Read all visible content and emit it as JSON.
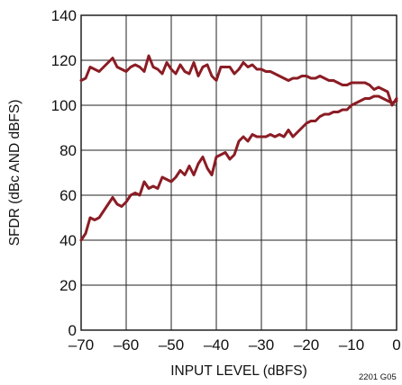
{
  "chart_data": {
    "type": "line",
    "xlabel": "INPUT LEVEL (dBFS)",
    "ylabel": "SFDR (dBc AND dBFS)",
    "figure_id": "2201 G05",
    "xlim": [
      -70,
      0
    ],
    "ylim": [
      0,
      140
    ],
    "x_ticks": [
      -70,
      -60,
      -50,
      -40,
      -30,
      -20,
      -10,
      0
    ],
    "x_tick_labels": [
      "–70",
      "–60",
      "–50",
      "–40",
      "–30",
      "–20",
      "–10",
      "0"
    ],
    "y_ticks": [
      0,
      20,
      40,
      60,
      80,
      100,
      120,
      140
    ],
    "y_tick_labels": [
      "0",
      "20",
      "40",
      "60",
      "80",
      "100",
      "120",
      "140"
    ],
    "grid": true,
    "line_color": "#8b1c24",
    "series": [
      {
        "x": [
          -70,
          -69,
          -68,
          -67,
          -66,
          -65,
          -64,
          -63,
          -62,
          -61,
          -60,
          -59,
          -58,
          -57,
          -56,
          -55,
          -54,
          -53,
          -52,
          -51,
          -50,
          -49,
          -48,
          -47,
          -46,
          -45,
          -44,
          -43,
          -42,
          -41,
          -40,
          -39,
          -38,
          -37,
          -36,
          -35,
          -34,
          -33,
          -32,
          -31,
          -30,
          -29,
          -28,
          -27,
          -26,
          -25,
          -24,
          -23,
          -22,
          -21,
          -20,
          -19,
          -18,
          -17,
          -16,
          -15,
          -14,
          -13,
          -12,
          -11,
          -10,
          -9,
          -8,
          -7,
          -6,
          -5,
          -4,
          -3,
          -2,
          -1,
          0
        ],
        "y": [
          111,
          112,
          117,
          116,
          115,
          117,
          119,
          121,
          117,
          116,
          115,
          117,
          118,
          117,
          115,
          122,
          117,
          116,
          114,
          119,
          116,
          114,
          118,
          115,
          114,
          119,
          113,
          117,
          118,
          113,
          111,
          117,
          117,
          117,
          114,
          116,
          119,
          117,
          118,
          116,
          116,
          115,
          115,
          114,
          113,
          112,
          111,
          112,
          112,
          113,
          113,
          112,
          112,
          113,
          112,
          111,
          111,
          110,
          109,
          109,
          110,
          110,
          110,
          110,
          109,
          107,
          108,
          107,
          106,
          100,
          103
        ]
      },
      {
        "x": [
          -70,
          -69,
          -68,
          -67,
          -66,
          -65,
          -64,
          -63,
          -62,
          -61,
          -60,
          -59,
          -58,
          -57,
          -56,
          -55,
          -54,
          -53,
          -52,
          -51,
          -50,
          -49,
          -48,
          -47,
          -46,
          -45,
          -44,
          -43,
          -42,
          -41,
          -40,
          -39,
          -38,
          -37,
          -36,
          -35,
          -34,
          -33,
          -32,
          -31,
          -30,
          -29,
          -28,
          -27,
          -26,
          -25,
          -24,
          -23,
          -22,
          -21,
          -20,
          -19,
          -18,
          -17,
          -16,
          -15,
          -14,
          -13,
          -12,
          -11,
          -10,
          -9,
          -8,
          -7,
          -6,
          -5,
          -4,
          -3,
          -2,
          -1,
          0
        ],
        "y": [
          40,
          43,
          50,
          49,
          50,
          53,
          56,
          59,
          56,
          55,
          57,
          60,
          61,
          60,
          66,
          63,
          64,
          63,
          68,
          67,
          66,
          68,
          71,
          69,
          73,
          69,
          74,
          77,
          72,
          69,
          77,
          78,
          79,
          76,
          78,
          84,
          86,
          84,
          87,
          86,
          86,
          86,
          87,
          86,
          87,
          86,
          89,
          86,
          88,
          90,
          92,
          93,
          93,
          95,
          96,
          96,
          97,
          97,
          98,
          98,
          100,
          101,
          102,
          103,
          103,
          104,
          104,
          103,
          102,
          101,
          102
        ]
      }
    ]
  }
}
